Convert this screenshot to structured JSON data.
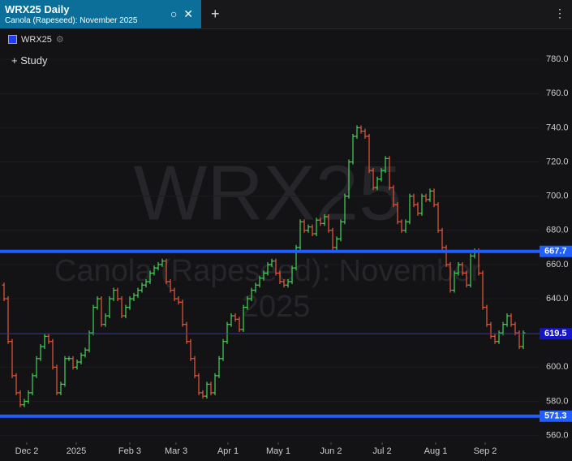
{
  "header": {
    "tab_title": "WRX25 Daily",
    "tab_subtitle": "Canola (Rapeseed): November 2025"
  },
  "legend": {
    "symbol": "WRX25",
    "study": "Study"
  },
  "chart_data": {
    "type": "ohlc",
    "watermark": {
      "symbol": "WRX25",
      "name": "Canola (Rapeseed): November",
      "year": "2025"
    },
    "up_color": "#45d35a",
    "down_color": "#e8573a",
    "x": [
      0,
      1,
      2,
      3,
      4,
      5,
      6,
      7,
      8,
      9,
      10,
      11,
      12,
      13,
      14,
      15,
      16,
      17,
      18,
      19,
      20,
      21,
      22,
      23,
      24,
      25,
      26,
      27,
      28,
      29,
      30,
      31,
      32,
      33,
      34,
      35,
      36,
      37,
      38,
      39,
      40,
      41,
      42,
      43,
      44,
      45,
      46,
      47,
      48,
      49,
      50,
      51,
      52,
      53,
      54,
      55,
      56,
      57,
      58,
      59,
      60,
      61,
      62,
      63,
      64,
      65,
      66,
      67,
      68,
      69,
      70,
      71,
      72,
      73,
      74,
      75,
      76,
      77,
      78,
      79,
      80,
      81,
      82,
      83,
      84,
      85,
      86,
      87,
      88,
      89,
      90,
      91,
      92,
      93,
      94,
      95,
      96,
      97,
      98,
      99,
      100,
      101,
      102,
      103,
      104,
      105,
      106,
      107,
      108,
      109,
      110,
      111,
      112,
      113,
      114,
      115,
      116,
      117,
      118,
      119,
      120,
      121,
      122,
      123,
      124,
      125,
      126,
      127,
      128
    ],
    "open": [
      648,
      640,
      615,
      595,
      585,
      578,
      580,
      585,
      595,
      605,
      612,
      618,
      615,
      600,
      585,
      590,
      605,
      605,
      600,
      603,
      607,
      610,
      620,
      635,
      640,
      625,
      630,
      640,
      645,
      640,
      630,
      635,
      640,
      642,
      645,
      648,
      650,
      655,
      658,
      660,
      662,
      650,
      645,
      640,
      638,
      625,
      615,
      605,
      595,
      585,
      583,
      590,
      585,
      595,
      605,
      615,
      625,
      630,
      628,
      622,
      635,
      640,
      645,
      648,
      652,
      655,
      660,
      662,
      655,
      650,
      648,
      650,
      658,
      670,
      685,
      680,
      682,
      678,
      686,
      684,
      688,
      680,
      670,
      675,
      685,
      700,
      720,
      735,
      740,
      738,
      735,
      715,
      705,
      710,
      715,
      722,
      705,
      695,
      685,
      680,
      685,
      700,
      695,
      690,
      700,
      698,
      703,
      695,
      680,
      670,
      660,
      645,
      655,
      660,
      655,
      648,
      665,
      668,
      655,
      635,
      625,
      618,
      615,
      620,
      625,
      630,
      625,
      620,
      612
    ],
    "close": [
      640,
      615,
      595,
      585,
      578,
      580,
      585,
      595,
      605,
      612,
      618,
      615,
      600,
      585,
      590,
      605,
      605,
      600,
      603,
      607,
      610,
      620,
      635,
      640,
      625,
      630,
      640,
      645,
      640,
      630,
      635,
      640,
      642,
      645,
      648,
      650,
      655,
      658,
      660,
      662,
      650,
      645,
      640,
      638,
      625,
      615,
      605,
      595,
      585,
      583,
      590,
      585,
      595,
      605,
      615,
      625,
      630,
      628,
      622,
      635,
      640,
      645,
      648,
      652,
      655,
      660,
      662,
      655,
      650,
      648,
      650,
      658,
      670,
      685,
      680,
      682,
      678,
      686,
      684,
      688,
      680,
      670,
      675,
      685,
      700,
      720,
      735,
      740,
      738,
      735,
      715,
      705,
      710,
      715,
      722,
      705,
      695,
      685,
      680,
      685,
      700,
      695,
      690,
      700,
      698,
      703,
      695,
      680,
      670,
      660,
      645,
      655,
      660,
      655,
      648,
      665,
      668,
      655,
      635,
      625,
      618,
      615,
      620,
      625,
      630,
      625,
      620,
      612,
      620
    ],
    "xlim": [
      -1,
      132
    ],
    "xticks": [
      {
        "value": 5.6,
        "label": "Dec 2"
      },
      {
        "value": 17.8,
        "label": "2025"
      },
      {
        "value": 31,
        "label": "Feb 3"
      },
      {
        "value": 42.4,
        "label": "Mar 3"
      },
      {
        "value": 55.2,
        "label": "Apr 1"
      },
      {
        "value": 67.6,
        "label": "May 1"
      },
      {
        "value": 80.6,
        "label": "Jun 2"
      },
      {
        "value": 93.2,
        "label": "Jul 2"
      },
      {
        "value": 106.4,
        "label": "Aug 1"
      },
      {
        "value": 118.6,
        "label": "Sep 2"
      }
    ],
    "ylim": [
      556,
      791
    ],
    "yticks": [
      {
        "value": 560,
        "label": "560.0"
      },
      {
        "value": 580,
        "label": "580.0"
      },
      {
        "value": 600,
        "label": "600.0"
      },
      {
        "value": 620,
        "label": "620.0"
      },
      {
        "value": 640,
        "label": "640.0"
      },
      {
        "value": 660,
        "label": "660.0"
      },
      {
        "value": 680,
        "label": "680.0"
      },
      {
        "value": 700,
        "label": "700.0"
      },
      {
        "value": 720,
        "label": "720.0"
      },
      {
        "value": 740,
        "label": "740.0"
      },
      {
        "value": 760,
        "label": "760.0"
      },
      {
        "value": 780,
        "label": "780.0"
      }
    ],
    "hlines": [
      {
        "value": 667.7,
        "label": "667.7",
        "width": 4
      },
      {
        "value": 619.5,
        "label": "619.5",
        "width": 1
      },
      {
        "value": 571.3,
        "label": "571.3",
        "width": 4
      }
    ]
  }
}
